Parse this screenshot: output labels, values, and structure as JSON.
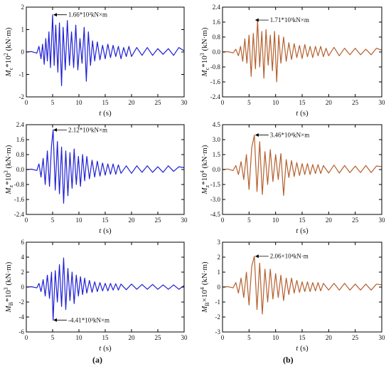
{
  "panel_labels": [
    "(a)",
    "(b)"
  ],
  "chart_data": [
    {
      "type": "line",
      "ylabel": "M_c*10^2 (kN·m)",
      "xlabel": "t (s)",
      "xlim": [
        0,
        30
      ],
      "ylim": [
        -2,
        2
      ],
      "xticks": [
        0,
        5,
        10,
        15,
        20,
        25,
        30
      ],
      "yticks": [
        -2,
        -1,
        0,
        1,
        2
      ],
      "series_color": "#1f1fd6",
      "annotation": {
        "text": "1.66*10²kN×m",
        "x": 5.0,
        "y": 1.66,
        "text_y": 1.66
      },
      "series": [
        {
          "x": [
            0,
            1,
            2,
            2.4,
            2.8,
            3.1,
            3.4,
            3.7,
            4,
            4.3,
            4.6,
            5,
            5.3,
            5.6,
            6,
            6.3,
            6.7,
            7,
            7.4,
            7.8,
            8.2,
            8.6,
            9,
            9.4,
            9.8,
            10.2,
            10.6,
            11,
            11.4,
            11.8,
            12.2,
            12.6,
            13,
            13.5,
            14,
            14.5,
            15,
            15.5,
            16,
            16.5,
            17,
            17.5,
            18,
            18.5,
            19,
            19.5,
            20,
            21,
            22,
            23,
            24,
            25,
            26,
            27,
            28,
            29,
            30
          ],
          "values": [
            0,
            0.02,
            -0.05,
            0.25,
            -0.3,
            0.35,
            -0.55,
            0.6,
            -0.4,
            0.9,
            -0.7,
            1.66,
            -0.6,
            1.2,
            -0.9,
            1.3,
            -1.5,
            1.1,
            -0.8,
            1.4,
            -0.6,
            0.9,
            -0.7,
            1.2,
            -0.8,
            0.6,
            -0.5,
            1.1,
            -1.3,
            0.9,
            -0.6,
            0.5,
            -0.4,
            0.45,
            -0.35,
            0.3,
            -0.3,
            0.35,
            -0.25,
            0.3,
            -0.2,
            0.25,
            -0.3,
            0.2,
            -0.2,
            0.25,
            -0.2,
            0.2,
            -0.15,
            0.2,
            -0.15,
            0.15,
            -0.1,
            0.15,
            -0.15,
            0.2,
            0.05
          ]
        }
      ]
    },
    {
      "type": "line",
      "ylabel": "M_c*10^3 (kN·m)",
      "xlabel": "t (s)",
      "xlim": [
        0,
        30
      ],
      "ylim": [
        -2.4,
        2.4
      ],
      "xticks": [
        0,
        5,
        10,
        15,
        20,
        25,
        30
      ],
      "yticks": [
        -2.4,
        -1.6,
        -0.8,
        0.0,
        0.8,
        1.6,
        2.4
      ],
      "series_color": "#b4602e",
      "annotation": {
        "text": "1.71*10³kN×m",
        "x": 6.0,
        "y": 1.71,
        "text_y": 1.71
      },
      "series": [
        {
          "x": [
            0,
            1,
            2,
            2.5,
            3,
            3.4,
            3.8,
            4.2,
            4.6,
            5,
            5.4,
            5.8,
            6.2,
            6.6,
            7,
            7.4,
            7.8,
            8.2,
            8.6,
            9,
            9.4,
            9.8,
            10.2,
            10.6,
            11,
            11.5,
            12,
            12.5,
            13,
            13.5,
            14,
            14.5,
            15,
            15.5,
            16,
            16.5,
            17,
            17.5,
            18,
            18.5,
            19,
            19.5,
            20,
            21,
            22,
            23,
            24,
            25,
            26,
            27,
            28,
            29,
            30
          ],
          "values": [
            0,
            0.02,
            -0.05,
            0.15,
            -0.2,
            0.3,
            -0.5,
            0.7,
            -0.6,
            0.9,
            -1.3,
            1.0,
            -0.9,
            1.71,
            -0.8,
            1.1,
            -1.4,
            1.2,
            -0.7,
            0.9,
            -1.0,
            1.1,
            -1.6,
            0.9,
            -0.6,
            0.8,
            -0.5,
            0.5,
            -0.4,
            0.45,
            -0.3,
            0.35,
            -0.35,
            0.4,
            -0.25,
            0.3,
            -0.3,
            0.3,
            -0.2,
            0.3,
            -0.25,
            0.2,
            -0.2,
            0.25,
            -0.2,
            0.2,
            -0.15,
            0.2,
            -0.15,
            0.15,
            -0.15,
            0.2,
            0.1
          ]
        }
      ]
    },
    {
      "type": "line",
      "ylabel": "M_z*10^3 (kN·m)",
      "xlabel": "t (s)",
      "xlim": [
        0,
        30
      ],
      "ylim": [
        -2.4,
        2.4
      ],
      "xticks": [
        0,
        5,
        10,
        15,
        20,
        25,
        30
      ],
      "yticks": [
        -2.4,
        -1.6,
        -0.8,
        0.0,
        0.8,
        1.6,
        2.4
      ],
      "series_color": "#1f1fd6",
      "annotation": {
        "text": "2.12*10³kN×m",
        "x": 5.0,
        "y": 2.12,
        "text_y": 2.12
      },
      "series": [
        {
          "x": [
            0,
            1,
            2,
            2.4,
            2.8,
            3.2,
            3.6,
            4,
            4.4,
            4.8,
            5.1,
            5.5,
            5.9,
            6.3,
            6.7,
            7.1,
            7.5,
            7.9,
            8.3,
            8.7,
            9.1,
            9.5,
            9.9,
            10.3,
            10.7,
            11.1,
            11.5,
            12,
            12.5,
            13,
            13.5,
            14,
            14.5,
            15,
            15.5,
            16,
            16.5,
            17,
            17.5,
            18,
            19,
            20,
            21,
            22,
            23,
            24,
            25,
            26,
            27,
            28,
            29,
            30
          ],
          "values": [
            0,
            0.02,
            -0.05,
            0.3,
            -0.4,
            0.6,
            -0.8,
            1.0,
            -0.9,
            1.3,
            2.12,
            -1.1,
            1.5,
            -1.3,
            1.2,
            -1.8,
            1.0,
            -1.4,
            0.9,
            -1.0,
            1.1,
            -0.8,
            0.7,
            -0.9,
            0.8,
            -0.6,
            0.7,
            -0.5,
            0.5,
            -0.4,
            0.45,
            -0.35,
            0.35,
            -0.3,
            0.3,
            -0.25,
            0.3,
            -0.25,
            0.25,
            -0.2,
            0.2,
            -0.2,
            0.2,
            -0.15,
            0.2,
            -0.15,
            0.15,
            -0.15,
            0.2,
            -0.1,
            0.15,
            0.1
          ]
        }
      ]
    },
    {
      "type": "line",
      "ylabel": "M_z*10^4 (kN·m)",
      "xlabel": "t (s)",
      "xlim": [
        0,
        30
      ],
      "ylim": [
        -4.5,
        4.5
      ],
      "xticks": [
        0,
        5,
        10,
        15,
        20,
        25,
        30
      ],
      "yticks": [
        -4.5,
        -3.0,
        -1.5,
        0.0,
        1.5,
        3.0,
        4.5
      ],
      "series_color": "#b4602e",
      "annotation": {
        "text": "3.46*10⁴kN×m",
        "x": 6.0,
        "y": 3.46,
        "text_y": 3.46
      },
      "series": [
        {
          "x": [
            0,
            1,
            2,
            2.5,
            3,
            3.5,
            4,
            4.5,
            5,
            5.5,
            6,
            6.5,
            7,
            7.5,
            8,
            8.5,
            9,
            9.5,
            10,
            10.5,
            11,
            11.5,
            12,
            12.5,
            13,
            13.5,
            14,
            14.5,
            15,
            15.5,
            16,
            16.5,
            17,
            17.5,
            18,
            18.5,
            19,
            20,
            21,
            22,
            23,
            24,
            25,
            26,
            27,
            28,
            29,
            30
          ],
          "values": [
            0,
            0.05,
            -0.1,
            0.4,
            -0.5,
            0.8,
            -1.0,
            1.5,
            -2.0,
            2.2,
            3.46,
            -2.2,
            2.8,
            -2.5,
            1.8,
            -1.5,
            2.0,
            -1.2,
            1.5,
            -1.0,
            1.6,
            -2.6,
            1.0,
            -0.8,
            0.9,
            -0.7,
            0.7,
            -0.6,
            0.6,
            -0.5,
            0.6,
            -0.5,
            0.5,
            -0.4,
            0.5,
            -0.4,
            0.4,
            -0.35,
            0.45,
            -0.35,
            0.4,
            -0.3,
            0.35,
            -0.3,
            0.4,
            -0.3,
            0.35,
            0.3
          ]
        }
      ]
    },
    {
      "type": "line",
      "ylabel": "M_B*10^3 (kN·m)",
      "xlabel": "t (s)",
      "xlim": [
        0,
        30
      ],
      "ylim": [
        -6,
        6
      ],
      "xticks": [
        0,
        5,
        10,
        15,
        20,
        25,
        30
      ],
      "yticks": [
        -6,
        -4,
        -2,
        0,
        2,
        4,
        6
      ],
      "series_color": "#1f1fd6",
      "annotation": {
        "text": "-4.41*10³kN×m",
        "x": 5.0,
        "y": -4.41,
        "text_y": -4.41
      },
      "series": [
        {
          "x": [
            0,
            1,
            2,
            2.4,
            2.8,
            3.2,
            3.6,
            4,
            4.4,
            4.8,
            5.1,
            5.5,
            5.9,
            6.3,
            6.7,
            7.1,
            7.5,
            7.9,
            8.3,
            8.7,
            9.1,
            9.5,
            9.9,
            10.3,
            10.7,
            11.1,
            11.5,
            12,
            12.5,
            13,
            13.5,
            14,
            14.5,
            15,
            15.5,
            16,
            16.5,
            17,
            17.5,
            18,
            19,
            20,
            21,
            22,
            23,
            24,
            25,
            26,
            27,
            28,
            29,
            30
          ],
          "values": [
            0,
            0.05,
            -0.1,
            0.5,
            -0.6,
            1.0,
            -1.2,
            1.6,
            -1.5,
            2.0,
            -4.41,
            2.2,
            -2.0,
            3.0,
            -2.6,
            3.9,
            -3.0,
            2.5,
            -1.8,
            2.0,
            -2.2,
            1.6,
            -1.2,
            1.4,
            -1.0,
            1.2,
            -0.8,
            0.9,
            -0.7,
            0.7,
            -0.6,
            0.6,
            -0.5,
            0.5,
            -0.5,
            0.5,
            -0.4,
            0.45,
            -0.4,
            0.4,
            -0.35,
            0.4,
            -0.3,
            0.35,
            -0.3,
            0.35,
            -0.3,
            0.3,
            -0.3,
            0.3,
            -0.3,
            0.2
          ]
        }
      ]
    },
    {
      "type": "line",
      "ylabel": "M_B×10^4 (kN·m)",
      "xlabel": "t (s)",
      "xlim": [
        0,
        30
      ],
      "ylim": [
        -3,
        3
      ],
      "xticks": [
        0,
        5,
        10,
        15,
        20,
        25,
        30
      ],
      "yticks": [
        -3,
        -2,
        -1,
        0,
        1,
        2,
        3
      ],
      "series_color": "#b4602e",
      "annotation": {
        "text": "2.06×10⁴kN·m",
        "x": 6.0,
        "y": 2.06,
        "text_y": 2.06
      },
      "series": [
        {
          "x": [
            0,
            1,
            2,
            2.5,
            3,
            3.5,
            4,
            4.5,
            5,
            5.5,
            6,
            6.5,
            7,
            7.5,
            8,
            8.5,
            9,
            9.5,
            10,
            10.5,
            11,
            11.5,
            12,
            12.5,
            13,
            13.5,
            14,
            14.5,
            15,
            15.5,
            16,
            16.5,
            17,
            17.5,
            18,
            18.5,
            19,
            20,
            21,
            22,
            23,
            24,
            25,
            26,
            27,
            28,
            29,
            30
          ],
          "values": [
            0,
            0.03,
            -0.05,
            0.3,
            -0.4,
            0.6,
            -0.7,
            1.0,
            -1.2,
            1.4,
            2.06,
            -1.5,
            1.6,
            -1.8,
            1.2,
            -1.0,
            1.2,
            -0.8,
            0.9,
            -0.7,
            0.8,
            -0.9,
            0.6,
            -0.5,
            0.6,
            -0.4,
            0.45,
            -0.35,
            0.35,
            -0.3,
            0.35,
            -0.3,
            0.3,
            -0.25,
            0.3,
            -0.25,
            0.25,
            -0.2,
            0.25,
            -0.2,
            0.25,
            -0.2,
            0.2,
            -0.2,
            0.2,
            -0.2,
            0.2,
            0.15
          ]
        }
      ]
    }
  ]
}
